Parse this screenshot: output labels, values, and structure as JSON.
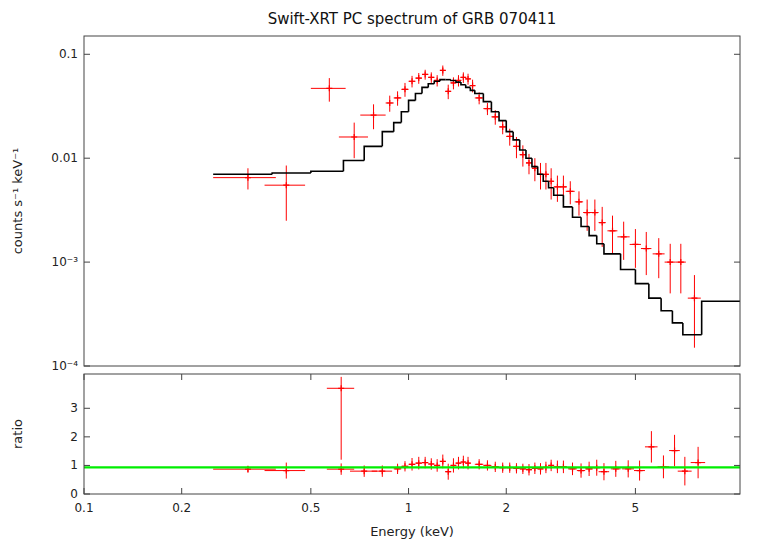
{
  "chart_data": [
    {
      "type": "scatter",
      "title": "Swift-XRT PC spectrum of GRB 070411",
      "ylabel": "counts s⁻¹ keV⁻¹",
      "log": true,
      "xlim": [
        0.1,
        10.5
      ],
      "ylim": [
        0.0001,
        0.15
      ],
      "yticks": [
        {
          "value": 0.0001,
          "label": "10⁻⁴"
        },
        {
          "value": 0.001,
          "label": "10⁻³"
        },
        0.01,
        0.1
      ],
      "tick_labels": "y",
      "grid": false,
      "series": [
        {
          "type": "scatter",
          "marker": "plus",
          "color": "#ff0000",
          "x": [
            0.32,
            0.42,
            0.57,
            0.68,
            0.78,
            0.875,
            0.925,
            0.975,
            1.025,
            1.075,
            1.125,
            1.175,
            1.225,
            1.275,
            1.325,
            1.375,
            1.425,
            1.475,
            1.525,
            1.575,
            1.65,
            1.75,
            1.85,
            1.95,
            2.05,
            2.15,
            2.25,
            2.35,
            2.45,
            2.55,
            2.65,
            2.75,
            2.875,
            3.0,
            3.15,
            3.35,
            3.55,
            3.75,
            3.95,
            4.25,
            4.6,
            5.0,
            5.4,
            5.9,
            6.4,
            6.9,
            7.6
          ],
          "values": [
            0.0065,
            0.0055,
            0.047,
            0.016,
            0.026,
            0.034,
            0.038,
            0.046,
            0.055,
            0.059,
            0.064,
            0.06,
            0.056,
            0.07,
            0.044,
            0.053,
            0.056,
            0.06,
            0.058,
            0.05,
            0.038,
            0.03,
            0.025,
            0.02,
            0.0162,
            0.013,
            0.0108,
            0.009,
            0.008,
            0.007,
            0.007,
            0.006,
            0.0053,
            0.0053,
            0.0048,
            0.0038,
            0.003,
            0.003,
            0.0024,
            0.002,
            0.00175,
            0.00148,
            0.00135,
            0.0012,
            0.001,
            0.001,
            0.00045
          ],
          "x_errors": [
            0.07,
            0.06,
            0.07,
            0.07,
            0.07,
            0.025,
            0.025,
            0.025,
            0.025,
            0.025,
            0.025,
            0.025,
            0.025,
            0.025,
            0.025,
            0.025,
            0.025,
            0.025,
            0.025,
            0.025,
            0.05,
            0.05,
            0.05,
            0.05,
            0.05,
            0.05,
            0.05,
            0.05,
            0.05,
            0.05,
            0.05,
            0.05,
            0.075,
            0.075,
            0.1,
            0.1,
            0.1,
            0.1,
            0.1,
            0.15,
            0.2,
            0.2,
            0.2,
            0.25,
            0.25,
            0.25,
            0.35
          ],
          "errors": [
            0.0015,
            0.003,
            0.012,
            0.006,
            0.007,
            0.006,
            0.006,
            0.007,
            0.007,
            0.007,
            0.007,
            0.007,
            0.007,
            0.008,
            0.007,
            0.007,
            0.007,
            0.007,
            0.007,
            0.007,
            0.005,
            0.004,
            0.004,
            0.003,
            0.003,
            0.003,
            0.0025,
            0.002,
            0.002,
            0.002,
            0.002,
            0.002,
            0.0015,
            0.0015,
            0.0012,
            0.001,
            0.001,
            0.001,
            0.001,
            0.0008,
            0.0007,
            0.0006,
            0.0006,
            0.0005,
            0.0005,
            0.0005,
            0.0003
          ]
        },
        {
          "type": "step",
          "color": "#000000",
          "bins": [
            0.25,
            0.38,
            0.5,
            0.63,
            0.73,
            0.83,
            0.9,
            0.95,
            1.0,
            1.05,
            1.1,
            1.15,
            1.2,
            1.25,
            1.3,
            1.35,
            1.4,
            1.45,
            1.5,
            1.55,
            1.6,
            1.7,
            1.8,
            1.9,
            2.0,
            2.1,
            2.2,
            2.3,
            2.4,
            2.5,
            2.6,
            2.7,
            2.8,
            3.0,
            3.2,
            3.4,
            3.6,
            3.8,
            4.0,
            4.5,
            5.0,
            5.5,
            6.0,
            6.5,
            7.0,
            8.0,
            10.5
          ],
          "values": [
            0.007,
            0.0072,
            0.0075,
            0.0095,
            0.013,
            0.018,
            0.022,
            0.028,
            0.036,
            0.042,
            0.048,
            0.052,
            0.055,
            0.057,
            0.057,
            0.056,
            0.054,
            0.051,
            0.048,
            0.045,
            0.042,
            0.035,
            0.028,
            0.023,
            0.018,
            0.015,
            0.012,
            0.01,
            0.0083,
            0.007,
            0.006,
            0.0052,
            0.0044,
            0.0034,
            0.0027,
            0.0022,
            0.0018,
            0.0015,
            0.0012,
            0.00085,
            0.00062,
            0.00045,
            0.00034,
            0.00026,
            0.0002,
            0.00042
          ]
        }
      ]
    },
    {
      "type": "scatter",
      "xlabel": "Energy (keV)",
      "ylabel": "ratio",
      "log": "x",
      "xlim": [
        0.1,
        10.5
      ],
      "ylim": [
        0,
        4.2
      ],
      "xticks": [
        0.1,
        0.2,
        0.5,
        1,
        2,
        5
      ],
      "yticks": [
        0,
        1,
        2,
        3
      ],
      "grid": false,
      "series": [
        {
          "type": "scatter",
          "marker": "plus",
          "color": "#ff0000",
          "x": [
            0.32,
            0.42,
            0.62,
            0.73,
            0.83,
            0.925,
            0.975,
            1.025,
            1.075,
            1.125,
            1.175,
            1.225,
            1.275,
            1.325,
            1.375,
            1.425,
            1.475,
            1.525,
            1.65,
            1.75,
            1.85,
            1.95,
            2.05,
            2.15,
            2.25,
            2.35,
            2.45,
            2.55,
            2.65,
            2.75,
            2.875,
            3.0,
            3.2,
            3.4,
            3.6,
            3.8,
            4.0,
            4.35,
            4.75,
            5.15,
            5.6,
            6.1,
            6.6,
            7.1,
            7.8
          ],
          "values": [
            0.87,
            0.82,
            0.87,
            0.8,
            0.8,
            0.88,
            0.97,
            1.04,
            1.08,
            1.1,
            1.05,
            1.0,
            1.14,
            0.78,
            1.0,
            1.08,
            1.12,
            1.08,
            1.04,
            1.0,
            0.95,
            0.92,
            0.92,
            0.9,
            0.88,
            0.85,
            0.9,
            0.88,
            0.93,
            1.0,
            0.95,
            0.95,
            0.88,
            0.82,
            0.88,
            0.92,
            0.78,
            0.88,
            0.88,
            0.82,
            1.65,
            0.95,
            1.52,
            0.8,
            1.1
          ],
          "x_errors": [
            0.07,
            0.06,
            0.06,
            0.07,
            0.06,
            0.025,
            0.025,
            0.025,
            0.025,
            0.025,
            0.025,
            0.025,
            0.025,
            0.025,
            0.025,
            0.025,
            0.025,
            0.025,
            0.05,
            0.05,
            0.05,
            0.05,
            0.05,
            0.05,
            0.05,
            0.05,
            0.05,
            0.05,
            0.05,
            0.05,
            0.075,
            0.075,
            0.1,
            0.1,
            0.1,
            0.1,
            0.15,
            0.15,
            0.2,
            0.2,
            0.25,
            0.25,
            0.25,
            0.35,
            0.4
          ],
          "errors": [
            0.12,
            0.28,
            0.2,
            0.2,
            0.2,
            0.18,
            0.18,
            0.22,
            0.22,
            0.2,
            0.2,
            0.22,
            0.24,
            0.28,
            0.25,
            0.22,
            0.22,
            0.22,
            0.18,
            0.18,
            0.18,
            0.18,
            0.18,
            0.18,
            0.18,
            0.2,
            0.2,
            0.2,
            0.2,
            0.2,
            0.22,
            0.22,
            0.22,
            0.25,
            0.25,
            0.28,
            0.3,
            0.28,
            0.3,
            0.35,
            0.55,
            0.4,
            0.55,
            0.5,
            0.55
          ]
        },
        {
          "type": "scatter",
          "marker": "plus",
          "color": "#ff0000",
          "x": [
            0.62
          ],
          "values": [
            3.7
          ],
          "x_errors": [
            0.06
          ],
          "errors_low": [
            2.5
          ],
          "errors_high": [
            0.4
          ]
        },
        {
          "type": "hline",
          "color": "#00ee00",
          "values": [
            0.93
          ]
        }
      ]
    }
  ]
}
